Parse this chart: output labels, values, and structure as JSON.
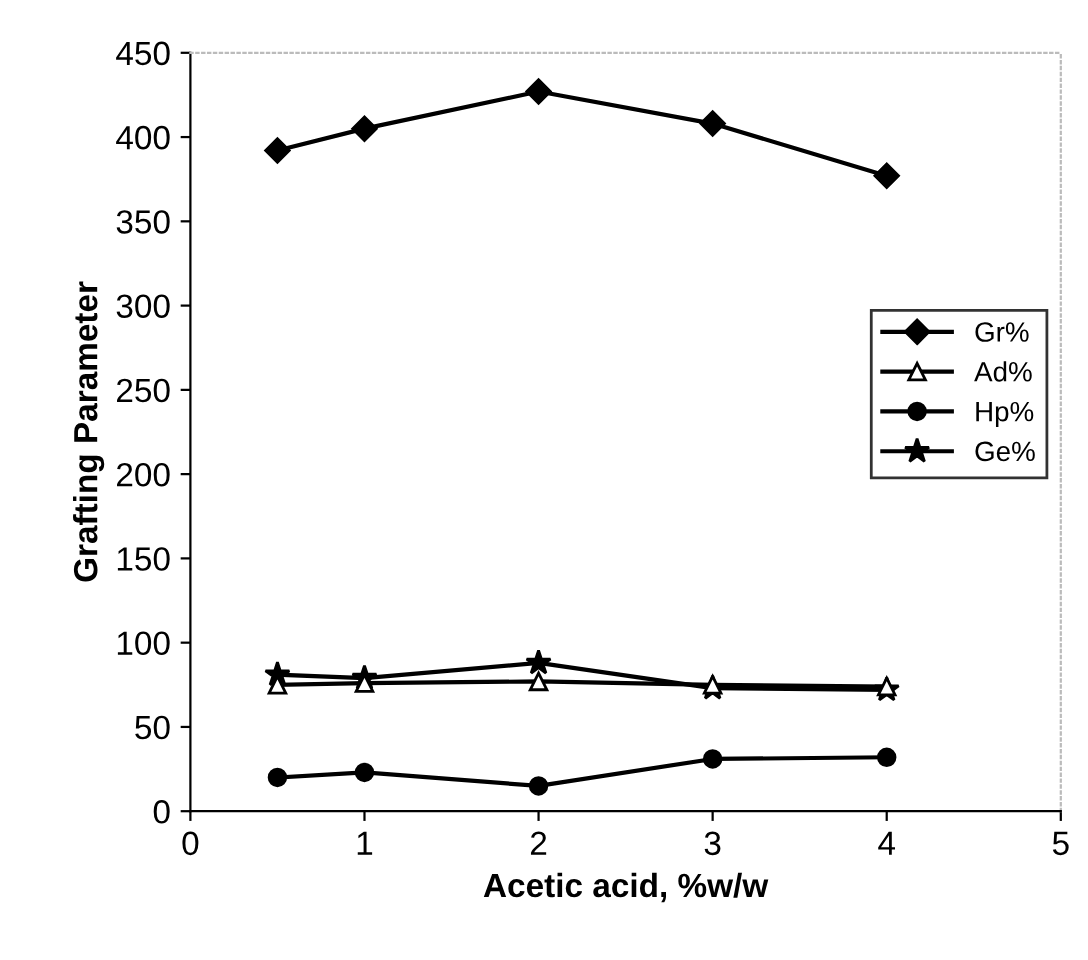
{
  "chart_data": {
    "type": "line",
    "xlabel": "Acetic acid, %w/w",
    "ylabel": "Grafting Parameter",
    "x": [
      0.5,
      1,
      2,
      3,
      4
    ],
    "xlim": [
      0,
      5
    ],
    "xticks": [
      0,
      1,
      2,
      3,
      4,
      5
    ],
    "ylim": [
      0,
      450
    ],
    "yticks": [
      0,
      50,
      100,
      150,
      200,
      250,
      300,
      350,
      400,
      450
    ],
    "grid": false,
    "legend": "right",
    "series": [
      {
        "name": "Gr%",
        "color": "#000000",
        "marker": "diamond",
        "values": [
          392,
          405,
          427,
          408,
          377
        ]
      },
      {
        "name": "Ad%",
        "color": "#000000",
        "marker": "triangle",
        "values": [
          75,
          76,
          77,
          75,
          74
        ]
      },
      {
        "name": "Hp%",
        "color": "#000000",
        "marker": "circle",
        "values": [
          20,
          23,
          15,
          31,
          32
        ]
      },
      {
        "name": "Ge%",
        "color": "#000000",
        "marker": "star",
        "values": [
          81,
          79,
          88,
          73,
          72
        ]
      }
    ]
  }
}
